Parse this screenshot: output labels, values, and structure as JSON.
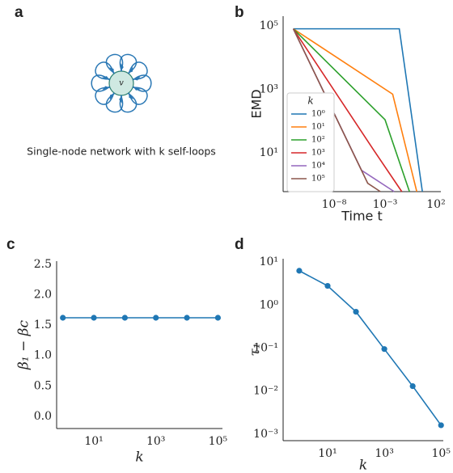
{
  "diagram": {
    "panel_label": "a",
    "node_label": "v",
    "caption": "Single-node network with k self-loops"
  },
  "chart_data": [
    {
      "type": "line",
      "panel_label": "b",
      "xlabel": "Time t",
      "ylabel": "EMD",
      "xscale": "log",
      "yscale": "log",
      "xlim": [
        1e-13,
        300
      ],
      "ylim": [
        0.6,
        200000
      ],
      "xticks": [
        {
          "value": 1e-08,
          "label": "10⁻⁸"
        },
        {
          "value": 0.001,
          "label": "10⁻³"
        },
        {
          "value": 100,
          "label": "10²"
        }
      ],
      "yticks": [
        {
          "value": 10,
          "label": "10¹"
        },
        {
          "value": 1000,
          "label": "10³"
        },
        {
          "value": 100000,
          "label": "10⁵"
        }
      ],
      "legend_title": "k",
      "legend": "lower left",
      "series": [
        {
          "name": "10⁰",
          "color": "#1f77b4",
          "x": [
            1e-12,
            0.025,
            4.6
          ],
          "values": [
            80000,
            80000,
            0.6
          ]
        },
        {
          "name": "10¹",
          "color": "#ff7f0e",
          "x": [
            1e-12,
            0.0056,
            1.3
          ],
          "values": [
            80000,
            700,
            0.6
          ]
        },
        {
          "name": "10²",
          "color": "#2ca02c",
          "x": [
            1e-12,
            0.001,
            0.25
          ],
          "values": [
            80000,
            110,
            0.6
          ]
        },
        {
          "name": "10³",
          "color": "#d62728",
          "x": [
            1e-12,
            8e-05,
            0.044
          ],
          "values": [
            80000,
            12,
            0.6
          ]
        },
        {
          "name": "10⁴",
          "color": "#9467bd",
          "x": [
            1e-12,
            5e-06,
            0.008
          ],
          "values": [
            80000,
            2.8,
            0.6
          ]
        },
        {
          "name": "10⁵",
          "color": "#8c564b",
          "x": [
            1e-12,
            2e-05,
            0.00035
          ],
          "values": [
            80000,
            1.1,
            0.6
          ]
        }
      ]
    },
    {
      "type": "line",
      "panel_label": "c",
      "xlabel": "k",
      "ylabel": "β₁ − βc",
      "xscale": "log",
      "yscale": "linear",
      "markers": true,
      "xlim": [
        0.63,
        140000
      ],
      "ylim": [
        -0.2,
        2.55
      ],
      "xticks": [
        {
          "value": 10,
          "label": "10¹"
        },
        {
          "value": 1000,
          "label": "10³"
        },
        {
          "value": 100000,
          "label": "10⁵"
        }
      ],
      "yticks": [
        {
          "value": 0,
          "label": "0.0"
        },
        0.5,
        {
          "value": 1,
          "label": "1.0"
        },
        1.5,
        {
          "value": 2,
          "label": "2.0"
        },
        2.5
      ],
      "series": [
        {
          "color": "#1f77b4",
          "x": [
            1,
            10,
            100,
            1000,
            10000,
            100000
          ],
          "values": [
            1.62,
            1.62,
            1.62,
            1.62,
            1.62,
            1.62
          ]
        }
      ]
    },
    {
      "type": "line",
      "panel_label": "d",
      "xlabel": "k",
      "ylabel": "τ₁",
      "xscale": "log",
      "yscale": "log",
      "markers": true,
      "xlim": [
        0.27,
        120000
      ],
      "ylim": [
        0.0007,
        12
      ],
      "xticks": [
        {
          "value": 10,
          "label": "10¹"
        },
        {
          "value": 1000,
          "label": "10³"
        },
        {
          "value": 100000,
          "label": "10⁵"
        }
      ],
      "yticks": [
        {
          "value": 0.001,
          "label": "10⁻³"
        },
        {
          "value": 0.01,
          "label": "10⁻²"
        },
        {
          "value": 0.1,
          "label": "10⁻¹"
        },
        {
          "value": 1,
          "label": "10⁰"
        },
        {
          "value": 10,
          "label": "10¹"
        }
      ],
      "series": [
        {
          "color": "#1f77b4",
          "x": [
            1,
            10,
            100,
            1000,
            10000,
            100000
          ],
          "values": [
            6.3,
            2.8,
            0.7,
            0.095,
            0.013,
            0.0016
          ]
        }
      ]
    }
  ]
}
